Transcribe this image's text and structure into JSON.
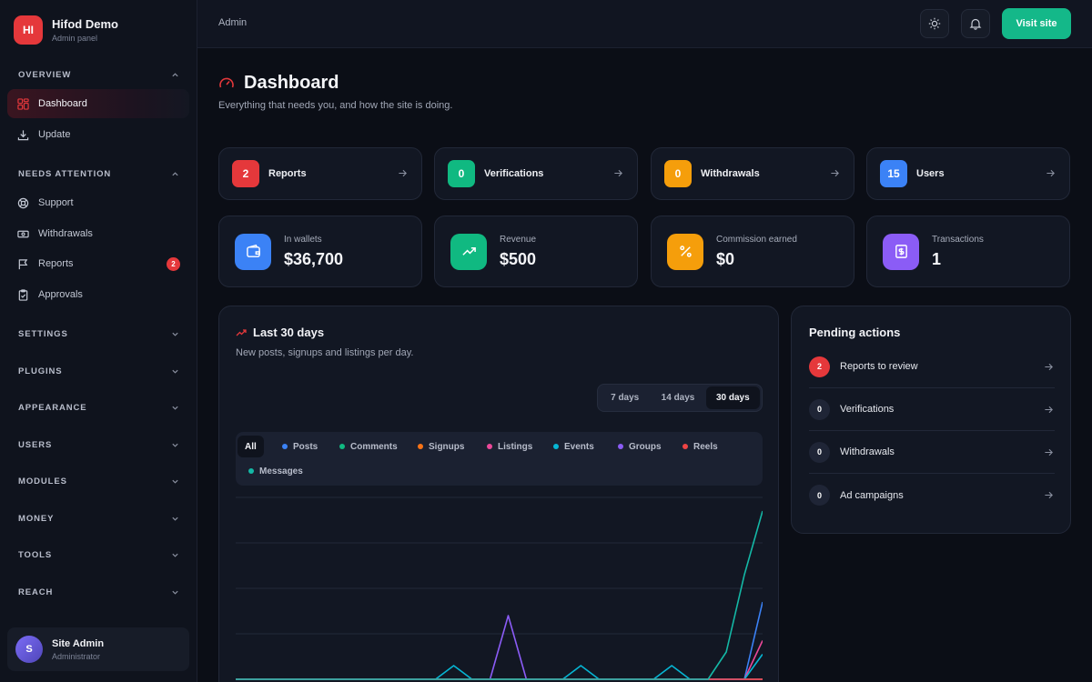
{
  "brand": {
    "initials": "HI",
    "name": "Hifod Demo",
    "subtitle": "Admin panel"
  },
  "sidebar": {
    "sections": [
      {
        "label": "OVERVIEW",
        "expanded": true,
        "items": [
          {
            "label": "Dashboard",
            "icon": "grid-icon",
            "active": true
          },
          {
            "label": "Update",
            "icon": "download-icon"
          }
        ]
      },
      {
        "label": "NEEDS ATTENTION",
        "expanded": true,
        "items": [
          {
            "label": "Support",
            "icon": "lifebuoy-icon"
          },
          {
            "label": "Withdrawals",
            "icon": "banknote-icon"
          },
          {
            "label": "Reports",
            "icon": "flag-icon",
            "badge": "2"
          },
          {
            "label": "Approvals",
            "icon": "clipboard-check-icon"
          }
        ]
      },
      {
        "label": "SETTINGS",
        "expanded": false
      },
      {
        "label": "PLUGINS",
        "expanded": false
      },
      {
        "label": "APPEARANCE",
        "expanded": false
      },
      {
        "label": "USERS",
        "expanded": false
      },
      {
        "label": "MODULES",
        "expanded": false
      },
      {
        "label": "MONEY",
        "expanded": false
      },
      {
        "label": "TOOLS",
        "expanded": false
      },
      {
        "label": "REACH",
        "expanded": false
      }
    ],
    "user": {
      "initial": "S",
      "name": "Site Admin",
      "role": "Administrator"
    }
  },
  "topbar": {
    "breadcrumb": "Admin",
    "visit_label": "Visit site"
  },
  "header": {
    "title": "Dashboard",
    "subtitle": "Everything that needs you, and how the site is doing."
  },
  "quick_cards": [
    {
      "count": "2",
      "label": "Reports",
      "color": "#e5383b"
    },
    {
      "count": "0",
      "label": "Verifications",
      "color": "#10b981"
    },
    {
      "count": "0",
      "label": "Withdrawals",
      "color": "#f59e0b"
    },
    {
      "count": "15",
      "label": "Users",
      "color": "#3b82f6"
    }
  ],
  "stats": [
    {
      "label": "In wallets",
      "value": "$36,700",
      "icon": "wallet-icon",
      "color": "#3b82f6"
    },
    {
      "label": "Revenue",
      "value": "$500",
      "icon": "trending-up-icon",
      "color": "#10b981"
    },
    {
      "label": "Commission earned",
      "value": "$0",
      "icon": "percent-icon",
      "color": "#f59e0b"
    },
    {
      "label": "Transactions",
      "value": "1",
      "icon": "receipt-dollar-icon",
      "color": "#8b5cf6"
    }
  ],
  "chart_panel": {
    "title": "Last 30 days",
    "subtitle": "New posts, signups and listings per day.",
    "ranges": [
      "7 days",
      "14 days",
      "30 days"
    ],
    "selected_range": "30 days",
    "filters": [
      {
        "label": "All",
        "color": null
      },
      {
        "label": "Posts",
        "color": "#3b82f6"
      },
      {
        "label": "Comments",
        "color": "#10b981"
      },
      {
        "label": "Signups",
        "color": "#f97316"
      },
      {
        "label": "Listings",
        "color": "#ec4899"
      },
      {
        "label": "Events",
        "color": "#06b6d4"
      },
      {
        "label": "Groups",
        "color": "#8b5cf6"
      },
      {
        "label": "Reels",
        "color": "#ef4444"
      },
      {
        "label": "Messages",
        "color": "#14b8a6"
      }
    ],
    "selected_filter": "All"
  },
  "chart_data": {
    "type": "line",
    "title": "Last 30 days",
    "xlabel": "",
    "ylabel": "",
    "grid": true,
    "x": [
      1,
      2,
      3,
      4,
      5,
      6,
      7,
      8,
      9,
      10,
      11,
      12,
      13,
      14,
      15,
      16,
      17,
      18,
      19,
      20,
      21,
      22,
      23,
      24,
      25,
      26,
      27,
      28,
      29,
      30
    ],
    "ylim": [
      0,
      4
    ],
    "series": [
      {
        "name": "Posts",
        "color": "#3b82f6",
        "values": [
          0,
          0,
          0,
          0,
          0,
          0,
          0,
          0,
          0,
          0,
          0,
          0,
          0,
          0,
          0,
          0,
          0,
          0,
          0,
          0,
          0,
          0,
          0,
          0,
          0,
          0,
          0,
          0,
          0,
          1.7
        ]
      },
      {
        "name": "Comments",
        "color": "#10b981",
        "values": [
          0,
          0,
          0,
          0,
          0,
          0,
          0,
          0,
          0,
          0,
          0,
          0,
          0,
          0,
          0,
          0,
          0,
          0,
          0,
          0,
          0,
          0,
          0,
          0,
          0,
          0,
          0,
          0,
          0,
          0
        ]
      },
      {
        "name": "Signups",
        "color": "#f97316",
        "values": [
          0,
          0,
          0,
          0,
          0,
          0,
          0,
          0,
          0,
          0,
          0,
          0,
          0,
          0,
          0,
          0,
          0,
          0,
          0,
          0,
          0,
          0,
          0,
          0,
          0,
          0,
          0,
          0,
          0,
          0
        ]
      },
      {
        "name": "Listings",
        "color": "#ec4899",
        "values": [
          0,
          0,
          0,
          0,
          0,
          0,
          0,
          0,
          0,
          0,
          0,
          0,
          0,
          0,
          0,
          0,
          0,
          0,
          0,
          0,
          0,
          0,
          0,
          0,
          0,
          0,
          0,
          0,
          0,
          0.85
        ]
      },
      {
        "name": "Events",
        "color": "#06b6d4",
        "values": [
          0,
          0,
          0,
          0,
          0,
          0,
          0,
          0,
          0,
          0,
          0,
          0,
          0.3,
          0,
          0,
          0,
          0,
          0,
          0,
          0.3,
          0,
          0,
          0,
          0,
          0.3,
          0,
          0,
          0,
          0,
          0.55
        ]
      },
      {
        "name": "Groups",
        "color": "#8b5cf6",
        "values": [
          0,
          0,
          0,
          0,
          0,
          0,
          0,
          0,
          0,
          0,
          0,
          0,
          0,
          0,
          0,
          1.4,
          0,
          0,
          0,
          0,
          0,
          0,
          0,
          0,
          0,
          0,
          0,
          0,
          0,
          0
        ]
      },
      {
        "name": "Reels",
        "color": "#ef4444",
        "values": [
          0,
          0,
          0,
          0,
          0,
          0,
          0,
          0,
          0,
          0,
          0,
          0,
          0,
          0,
          0,
          0,
          0,
          0,
          0,
          0,
          0,
          0,
          0,
          0,
          0,
          0,
          0,
          0,
          0,
          0
        ]
      },
      {
        "name": "Messages",
        "color": "#14b8a6",
        "values": [
          0,
          0,
          0,
          0,
          0,
          0,
          0,
          0,
          0,
          0,
          0,
          0,
          0,
          0,
          0,
          0,
          0,
          0,
          0,
          0,
          0,
          0,
          0,
          0,
          0,
          0,
          0,
          0.6,
          2.3,
          3.7
        ]
      }
    ]
  },
  "pending": {
    "title": "Pending actions",
    "items": [
      {
        "count": "2",
        "label": "Reports to review",
        "highlight": true
      },
      {
        "count": "0",
        "label": "Verifications"
      },
      {
        "count": "0",
        "label": "Withdrawals"
      },
      {
        "count": "0",
        "label": "Ad campaigns"
      }
    ]
  }
}
